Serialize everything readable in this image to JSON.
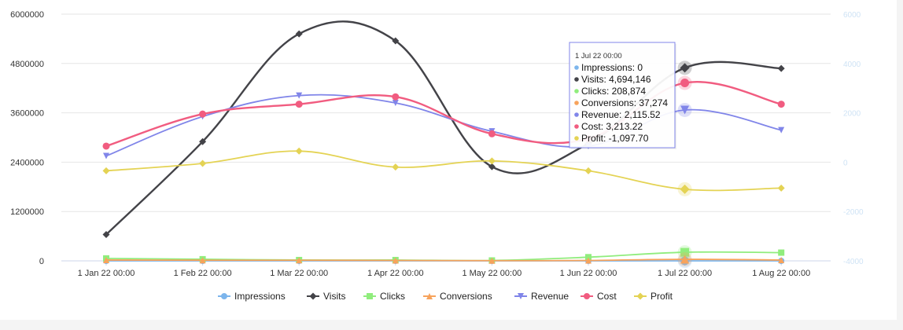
{
  "chart_data": {
    "type": "line",
    "title": "",
    "xlabel": "",
    "ylabel": "",
    "categories": [
      "1 Jan 22 00:00",
      "1 Feb 22 00:00",
      "1 Mar 22 00:00",
      "1 Apr 22 00:00",
      "1 May 22 00:00",
      "1 Jun 22 00:00",
      "1 Jul 22 00:00",
      "1 Aug 22 00:00"
    ],
    "ylim_left": [
      0,
      6000000
    ],
    "yticks_left": [
      "6000000",
      "4800000",
      "3600000",
      "2400000",
      "1200000",
      "0"
    ],
    "ylim_right": [
      -4000,
      6000
    ],
    "yticks_right": [
      "6000",
      "4000",
      "2000",
      "0",
      "-2000",
      "-4000"
    ],
    "grid": true,
    "legend_position": "bottom",
    "series": [
      {
        "name": "Impressions",
        "axis": "left",
        "color": "#7cb5ec",
        "marker": "circle",
        "values": [
          0,
          0,
          0,
          0,
          0,
          0,
          0,
          0
        ]
      },
      {
        "name": "Visits",
        "axis": "left",
        "color": "#434348",
        "marker": "diamond",
        "values": [
          640000,
          2900000,
          5520000,
          5350000,
          2290000,
          2850000,
          4694146,
          4680000
        ]
      },
      {
        "name": "Clicks",
        "axis": "left",
        "color": "#90ed7d",
        "marker": "square",
        "values": [
          60000,
          40000,
          20000,
          20000,
          10000,
          90000,
          208874,
          200000
        ]
      },
      {
        "name": "Conversions",
        "axis": "left",
        "color": "#f7a35c",
        "marker": "triangle",
        "values": [
          20000,
          15000,
          15000,
          10000,
          5000,
          10000,
          37274,
          20000
        ]
      },
      {
        "name": "Revenue",
        "axis": "right",
        "color": "#8085e9",
        "marker": "triangle-down",
        "values": [
          250,
          1850,
          2700,
          2400,
          1250,
          650,
          2115.52,
          1300
        ]
      },
      {
        "name": "Cost",
        "axis": "right",
        "color": "#f15c80",
        "marker": "circle",
        "values": [
          650,
          1950,
          2350,
          2650,
          1150,
          950,
          3213.22,
          2350
        ]
      },
      {
        "name": "Profit",
        "axis": "right",
        "color": "#e4d354",
        "marker": "diamond",
        "values": [
          -350,
          -50,
          450,
          -200,
          50,
          -350,
          -1097.7,
          -1050
        ]
      }
    ]
  },
  "tooltip": {
    "timestamp": "1 Jul 22 00:00",
    "rows": [
      {
        "name": "Impressions",
        "value": "0",
        "color": "#7cb5ec"
      },
      {
        "name": "Visits",
        "value": "4,694,146",
        "color": "#434348"
      },
      {
        "name": "Clicks",
        "value": "208,874",
        "color": "#90ed7d"
      },
      {
        "name": "Conversions",
        "value": "37,274",
        "color": "#f7a35c"
      },
      {
        "name": "Revenue",
        "value": "2,115.52",
        "color": "#8085e9"
      },
      {
        "name": "Cost",
        "value": "3,213.22",
        "color": "#f15c80"
      },
      {
        "name": "Profit",
        "value": "-1,097.70",
        "color": "#e4d354"
      }
    ]
  }
}
